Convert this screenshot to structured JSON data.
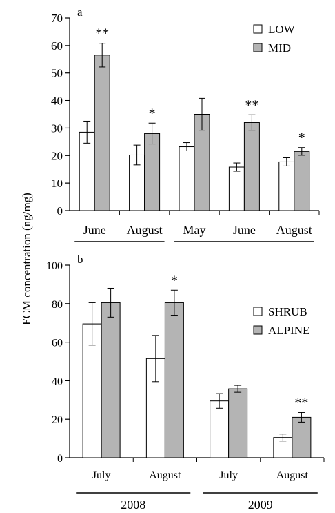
{
  "ylabel": "FCM concentration (ng/mg)",
  "chart_data": [
    {
      "type": "bar",
      "panel_label": "a",
      "ylim": [
        0,
        70
      ],
      "yticks": [
        0,
        10,
        20,
        30,
        40,
        50,
        60,
        70
      ],
      "categories": [
        "June",
        "August",
        "May",
        "June",
        "August"
      ],
      "series": [
        {
          "name": "LOW",
          "color": "#ffffff",
          "values": [
            28.5,
            20.2,
            23.2,
            15.8,
            17.7
          ],
          "errors": [
            4.0,
            3.6,
            1.5,
            1.5,
            1.5
          ]
        },
        {
          "name": "MID",
          "color": "#b4b4b4",
          "values": [
            56.5,
            28.0,
            35.0,
            32.0,
            21.5
          ],
          "errors": [
            4.3,
            3.8,
            5.8,
            2.8,
            1.4
          ]
        }
      ],
      "significance": [
        "**",
        "*",
        "",
        "**",
        "*"
      ],
      "groups": [
        {
          "label": "",
          "from": 0,
          "to": 1
        },
        {
          "label": "",
          "from": 2,
          "to": 4
        }
      ],
      "legend_position": "top-right"
    },
    {
      "type": "bar",
      "panel_label": "b",
      "ylim": [
        0,
        100
      ],
      "yticks": [
        0,
        20,
        40,
        60,
        80,
        100
      ],
      "categories": [
        "July",
        "August",
        "July",
        "August"
      ],
      "series": [
        {
          "name": "SHRUB",
          "color": "#ffffff",
          "values": [
            69.5,
            51.5,
            29.5,
            10.5
          ],
          "errors": [
            11.0,
            12.0,
            3.8,
            1.8
          ]
        },
        {
          "name": "ALPINE",
          "color": "#b4b4b4",
          "values": [
            80.5,
            80.5,
            35.8,
            21.0
          ],
          "errors": [
            7.5,
            6.5,
            1.8,
            2.5
          ]
        }
      ],
      "significance": [
        "",
        "*",
        "",
        "**"
      ],
      "groups": [
        {
          "label": "2008",
          "from": 0,
          "to": 1
        },
        {
          "label": "2009",
          "from": 2,
          "to": 3
        }
      ],
      "legend_position": "top-right"
    }
  ]
}
